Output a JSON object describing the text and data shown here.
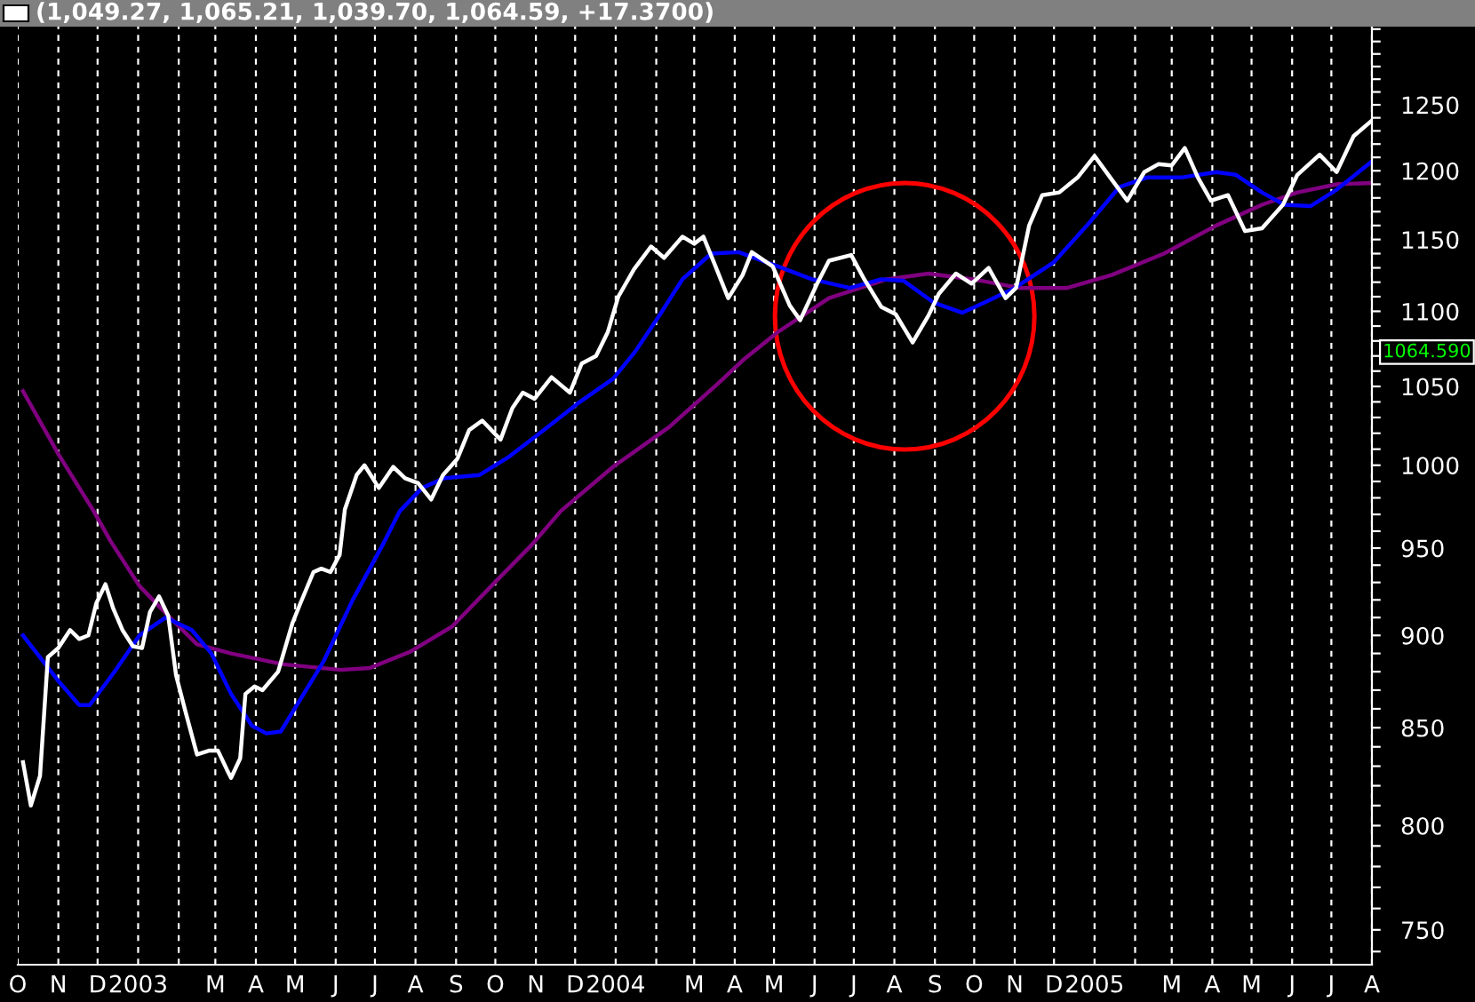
{
  "chart_data": {
    "type": "line",
    "title": "(1,049.27, 1,065.21, 1,039.70, 1,064.59, +17.3700)",
    "annotations": [
      "1064.590"
    ],
    "log": "y",
    "grid": "x",
    "xlim": [
      "2002-10-01",
      "2005-08-01"
    ],
    "xticks": [
      {
        "value": "2002-10-01",
        "label": "O"
      },
      {
        "value": "2002-11-01",
        "label": "N"
      },
      {
        "value": "2002-12-01",
        "label": "D"
      },
      {
        "value": "2003-01-01",
        "label": "2003"
      },
      {
        "value": "2003-02-01",
        "label": null
      },
      {
        "value": "2003-03-01",
        "label": "M"
      },
      {
        "value": "2003-04-01",
        "label": "A"
      },
      {
        "value": "2003-05-01",
        "label": "M"
      },
      {
        "value": "2003-06-01",
        "label": "J"
      },
      {
        "value": "2003-07-01",
        "label": "J"
      },
      {
        "value": "2003-08-01",
        "label": "A"
      },
      {
        "value": "2003-09-01",
        "label": "S"
      },
      {
        "value": "2003-10-01",
        "label": "O"
      },
      {
        "value": "2003-11-01",
        "label": "N"
      },
      {
        "value": "2003-12-01",
        "label": "D"
      },
      {
        "value": "2004-01-01",
        "label": "2004"
      },
      {
        "value": "2004-02-01",
        "label": null
      },
      {
        "value": "2004-03-01",
        "label": "M"
      },
      {
        "value": "2004-04-01",
        "label": "A"
      },
      {
        "value": "2004-05-01",
        "label": "M"
      },
      {
        "value": "2004-06-01",
        "label": "J"
      },
      {
        "value": "2004-07-01",
        "label": "J"
      },
      {
        "value": "2004-08-01",
        "label": "A"
      },
      {
        "value": "2004-09-01",
        "label": "S"
      },
      {
        "value": "2004-10-01",
        "label": "O"
      },
      {
        "value": "2004-11-01",
        "label": "N"
      },
      {
        "value": "2004-12-01",
        "label": "D"
      },
      {
        "value": "2005-01-01",
        "label": "2005"
      },
      {
        "value": "2005-02-01",
        "label": null
      },
      {
        "value": "2005-03-01",
        "label": "M"
      },
      {
        "value": "2005-04-01",
        "label": "A"
      },
      {
        "value": "2005-05-01",
        "label": "M"
      },
      {
        "value": "2005-06-01",
        "label": "J"
      },
      {
        "value": "2005-07-01",
        "label": "J"
      },
      {
        "value": "2005-08-01",
        "label": "A"
      }
    ],
    "ylim": [
      734,
      1312
    ],
    "yticks": [
      {
        "value": 740,
        "label": null
      },
      750,
      {
        "value": 760,
        "label": null
      },
      {
        "value": 770,
        "label": null
      },
      {
        "value": 780,
        "label": null
      },
      {
        "value": 790,
        "label": null
      },
      800,
      {
        "value": 810,
        "label": null
      },
      {
        "value": 820,
        "label": null
      },
      {
        "value": 830,
        "label": null
      },
      {
        "value": 840,
        "label": null
      },
      850,
      {
        "value": 860,
        "label": null
      },
      {
        "value": 870,
        "label": null
      },
      {
        "value": 880,
        "label": null
      },
      {
        "value": 890,
        "label": null
      },
      900,
      {
        "value": 910,
        "label": null
      },
      {
        "value": 920,
        "label": null
      },
      {
        "value": 930,
        "label": null
      },
      {
        "value": 940,
        "label": null
      },
      950,
      {
        "value": 960,
        "label": null
      },
      {
        "value": 970,
        "label": null
      },
      {
        "value": 980,
        "label": null
      },
      {
        "value": 990,
        "label": null
      },
      1000,
      {
        "value": 1010,
        "label": null
      },
      {
        "value": 1020,
        "label": null
      },
      {
        "value": 1030,
        "label": null
      },
      {
        "value": 1040,
        "label": null
      },
      1050,
      {
        "value": 1060,
        "label": null
      },
      {
        "value": 1070,
        "label": null
      },
      {
        "value": 1080,
        "label": null
      },
      {
        "value": 1090,
        "label": null
      },
      1100,
      {
        "value": 1110,
        "label": null
      },
      {
        "value": 1120,
        "label": null
      },
      {
        "value": 1130,
        "label": null
      },
      {
        "value": 1140,
        "label": null
      },
      1150,
      {
        "value": 1160,
        "label": null
      },
      {
        "value": 1170,
        "label": null
      },
      {
        "value": 1180,
        "label": null
      },
      {
        "value": 1190,
        "label": null
      },
      1200,
      {
        "value": 1210,
        "label": null
      },
      {
        "value": 1220,
        "label": null
      },
      {
        "value": 1230,
        "label": null
      },
      {
        "value": 1240,
        "label": null
      },
      1250,
      {
        "value": 1260,
        "label": null
      },
      {
        "value": 1270,
        "label": null
      },
      {
        "value": 1280,
        "label": null
      },
      {
        "value": 1290,
        "label": null
      },
      {
        "value": 1300,
        "label": null
      },
      {
        "value": 1310,
        "label": null
      }
    ],
    "series": [
      {
        "color": "#ffffff",
        "x": [
          "2002-10-05",
          "2002-10-11",
          "2002-10-18",
          "2002-10-24",
          "2002-11-01",
          "2002-11-10",
          "2002-11-17",
          "2002-11-24",
          "2002-11-30",
          "2002-12-07",
          "2002-12-13",
          "2002-12-20",
          "2002-12-28",
          "2003-01-04",
          "2003-01-10",
          "2003-01-17",
          "2003-01-24",
          "2003-01-30",
          "2003-02-06",
          "2003-02-15",
          "2003-02-24",
          "2003-03-03",
          "2003-03-10",
          "2003-03-13",
          "2003-03-20",
          "2003-03-24",
          "2003-03-31",
          "2003-04-06",
          "2003-04-18",
          "2003-04-29",
          "2003-05-05",
          "2003-05-15",
          "2003-05-21",
          "2003-05-28",
          "2003-06-04",
          "2003-06-08",
          "2003-06-17",
          "2003-06-23",
          "2003-07-04",
          "2003-07-15",
          "2003-07-24",
          "2003-08-03",
          "2003-08-13",
          "2003-08-22",
          "2003-09-02",
          "2003-09-11",
          "2003-09-21",
          "2003-10-05",
          "2003-10-14",
          "2003-10-22",
          "2003-10-31",
          "2003-11-13",
          "2003-11-27",
          "2003-12-06",
          "2003-12-17",
          "2003-12-26",
          "2004-01-03",
          "2004-01-15",
          "2004-01-28",
          "2004-02-07",
          "2004-02-21",
          "2004-03-01",
          "2004-03-08",
          "2004-03-16",
          "2004-03-27",
          "2004-04-07",
          "2004-04-14",
          "2004-04-30",
          "2004-05-13",
          "2004-05-21",
          "2004-06-03",
          "2004-06-12",
          "2004-06-29",
          "2004-07-09",
          "2004-07-22",
          "2004-08-02",
          "2004-08-15",
          "2004-08-27",
          "2004-09-04",
          "2004-09-17",
          "2004-09-29",
          "2004-10-12",
          "2004-10-25",
          "2004-11-02",
          "2004-11-12",
          "2004-11-22",
          "2004-12-05",
          "2004-12-19",
          "2005-01-01",
          "2005-01-13",
          "2005-01-26",
          "2005-02-08",
          "2005-02-19",
          "2005-03-01",
          "2005-03-11",
          "2005-03-21",
          "2005-03-31",
          "2005-04-13",
          "2005-04-26",
          "2005-05-09",
          "2005-05-25",
          "2005-06-05",
          "2005-06-22",
          "2005-07-05",
          "2005-07-18",
          "2005-08-01"
        ],
        "values": [
          832,
          810,
          825,
          888,
          893,
          903,
          898,
          900,
          918,
          929,
          915,
          903,
          894,
          893,
          913,
          922,
          911,
          878,
          859,
          836,
          838,
          838,
          828,
          824,
          834,
          868,
          872,
          870,
          880,
          907,
          918,
          936,
          938,
          936,
          946,
          973,
          994,
          1000,
          986,
          999,
          992,
          989,
          979,
          994,
          1004,
          1022,
          1028,
          1016,
          1036,
          1046,
          1042,
          1056,
          1046,
          1065,
          1070,
          1086,
          1110,
          1129,
          1145,
          1137,
          1152,
          1147,
          1152,
          1134,
          1109,
          1125,
          1141,
          1131,
          1104,
          1094,
          1119,
          1135,
          1139,
          1122,
          1103,
          1098,
          1079,
          1097,
          1112,
          1126,
          1119,
          1130,
          1109,
          1116,
          1160,
          1182,
          1184,
          1195,
          1211,
          1195,
          1178,
          1199,
          1205,
          1204,
          1217,
          1195,
          1178,
          1182,
          1156,
          1158,
          1175,
          1197,
          1212,
          1199,
          1226,
          1238
        ]
      },
      {
        "color": "#0000ff",
        "x": [
          "2002-10-05",
          "2002-11-01",
          "2002-11-17",
          "2002-11-25",
          "2002-12-15",
          "2003-01-02",
          "2003-01-22",
          "2003-02-11",
          "2003-02-26",
          "2003-03-13",
          "2003-03-29",
          "2003-04-09",
          "2003-04-20",
          "2003-05-05",
          "2003-05-23",
          "2003-06-14",
          "2003-07-07",
          "2003-07-20",
          "2003-08-06",
          "2003-08-23",
          "2003-09-19",
          "2003-10-11",
          "2003-11-07",
          "2003-12-03",
          "2003-12-30",
          "2004-01-16",
          "2004-02-04",
          "2004-02-21",
          "2004-03-14",
          "2004-04-04",
          "2004-05-04",
          "2004-05-30",
          "2004-06-28",
          "2004-07-22",
          "2004-08-08",
          "2004-08-31",
          "2004-09-22",
          "2004-10-09",
          "2004-11-01",
          "2004-12-01",
          "2004-12-28",
          "2005-01-20",
          "2005-02-10",
          "2005-03-08",
          "2005-04-04",
          "2005-04-19",
          "2005-05-09",
          "2005-05-26",
          "2005-06-15",
          "2005-07-05",
          "2005-08-01"
        ],
        "values": [
          900,
          875,
          862,
          862,
          881,
          900,
          910,
          903,
          890,
          868,
          851,
          847,
          848,
          865,
          886,
          920,
          952,
          972,
          986,
          992,
          994,
          1005,
          1022,
          1039,
          1055,
          1073,
          1098,
          1122,
          1140,
          1141,
          1131,
          1122,
          1116,
          1122,
          1121,
          1106,
          1099,
          1106,
          1116,
          1134,
          1162,
          1188,
          1195,
          1195,
          1199,
          1197,
          1184,
          1175,
          1174,
          1186,
          1207
        ]
      },
      {
        "color": "#800080",
        "x": [
          "2002-10-05",
          "2002-11-01",
          "2002-11-28",
          "2002-12-11",
          "2003-01-02",
          "2003-01-24",
          "2003-02-15",
          "2003-03-13",
          "2003-04-22",
          "2003-06-05",
          "2003-06-27",
          "2003-07-28",
          "2003-08-29",
          "2003-09-28",
          "2003-10-29",
          "2003-11-20",
          "2003-12-30",
          "2004-02-11",
          "2004-03-18",
          "2004-04-07",
          "2004-05-04",
          "2004-06-12",
          "2004-07-26",
          "2004-08-27",
          "2004-09-30",
          "2004-11-05",
          "2004-12-11",
          "2005-01-14",
          "2005-02-23",
          "2005-04-04",
          "2005-05-09",
          "2005-06-05",
          "2005-07-05",
          "2005-08-01"
        ],
        "values": [
          1047,
          1007,
          972,
          954,
          928,
          911,
          895,
          890,
          884,
          881,
          882,
          891,
          905,
          928,
          952,
          972,
          999,
          1024,
          1051,
          1067,
          1086,
          1109,
          1122,
          1126,
          1122,
          1116,
          1116,
          1125,
          1140,
          1160,
          1175,
          1184,
          1190,
          1191
        ]
      }
    ]
  }
}
